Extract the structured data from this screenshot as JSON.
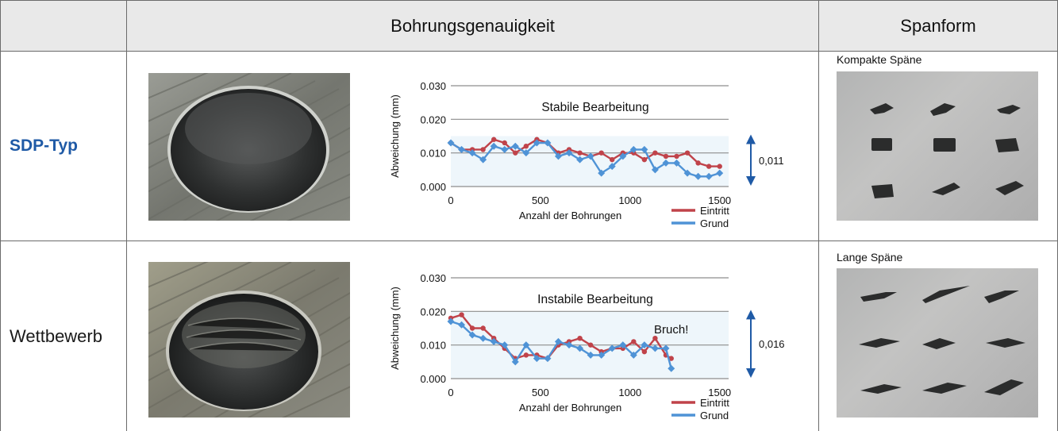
{
  "header": {
    "col_accuracy": "Bohrungsgenauigkeit",
    "col_chip": "Spanform"
  },
  "rows": [
    {
      "label": "SDP-Typ",
      "chip_label": "Kompakte Späne",
      "chart_note": "Stabile Bearbeitung",
      "range_value": "0,011"
    },
    {
      "label": "Wettbewerb",
      "chip_label": "Lange Späne",
      "chart_note": "Instabile Bearbeitung",
      "break_note": "Bruch!",
      "range_value": "0,016"
    }
  ],
  "colors": {
    "eintritt": "#c0434a",
    "grund": "#4f93d6",
    "brand": "#1f5aa6",
    "arrow": "#1f5aa6",
    "band": "#eef6fb"
  },
  "chart_data": [
    {
      "type": "line",
      "title": "",
      "xlabel": "Anzahl der Bohrungen",
      "ylabel": "Abweichung (mm)",
      "xlim": [
        0,
        1550
      ],
      "ylim": [
        0,
        0.03
      ],
      "xticks": [
        "0",
        "500",
        "1000",
        "1500"
      ],
      "yticks": [
        "0.000",
        "0.010",
        "0.020",
        "0.030"
      ],
      "grid": true,
      "legend_position": "bottom-right",
      "annotations": [
        "Stabile Bearbeitung",
        "0,011"
      ],
      "band": [
        0,
        0.015
      ],
      "series": [
        {
          "name": "Eintritt",
          "x": [
            0,
            60,
            120,
            180,
            240,
            300,
            360,
            420,
            480,
            540,
            600,
            660,
            720,
            780,
            840,
            900,
            960,
            1020,
            1080,
            1140,
            1200,
            1260,
            1320,
            1380,
            1440,
            1500
          ],
          "y": [
            0.013,
            0.011,
            0.011,
            0.011,
            0.014,
            0.013,
            0.01,
            0.012,
            0.014,
            0.013,
            0.01,
            0.011,
            0.01,
            0.009,
            0.01,
            0.008,
            0.01,
            0.01,
            0.008,
            0.01,
            0.009,
            0.009,
            0.01,
            0.007,
            0.006,
            0.006
          ]
        },
        {
          "name": "Grund",
          "x": [
            0,
            60,
            120,
            180,
            240,
            300,
            360,
            420,
            480,
            540,
            600,
            660,
            720,
            780,
            840,
            900,
            960,
            1020,
            1080,
            1140,
            1200,
            1260,
            1320,
            1380,
            1440,
            1500
          ],
          "y": [
            0.013,
            0.011,
            0.01,
            0.008,
            0.012,
            0.011,
            0.012,
            0.01,
            0.013,
            0.013,
            0.009,
            0.01,
            0.008,
            0.009,
            0.004,
            0.006,
            0.009,
            0.011,
            0.011,
            0.005,
            0.007,
            0.007,
            0.004,
            0.003,
            0.003,
            0.004
          ]
        }
      ]
    },
    {
      "type": "line",
      "title": "",
      "xlabel": "Anzahl der Bohrungen",
      "ylabel": "Abweichung (mm)",
      "xlim": [
        0,
        1550
      ],
      "ylim": [
        0,
        0.03
      ],
      "xticks": [
        "0",
        "500",
        "1000",
        "1500"
      ],
      "yticks": [
        "0.000",
        "0.010",
        "0.020",
        "0.030"
      ],
      "grid": true,
      "legend_position": "bottom-right",
      "annotations": [
        "Instabile Bearbeitung",
        "Bruch!",
        "0,016"
      ],
      "band": [
        0,
        0.02
      ],
      "series": [
        {
          "name": "Eintritt",
          "x": [
            0,
            60,
            120,
            180,
            240,
            300,
            360,
            420,
            480,
            540,
            600,
            660,
            720,
            780,
            840,
            900,
            960,
            1020,
            1080,
            1140,
            1200,
            1230
          ],
          "y": [
            0.018,
            0.019,
            0.015,
            0.015,
            0.012,
            0.009,
            0.006,
            0.007,
            0.007,
            0.006,
            0.01,
            0.011,
            0.012,
            0.01,
            0.008,
            0.009,
            0.009,
            0.011,
            0.008,
            0.012,
            0.007,
            0.006
          ]
        },
        {
          "name": "Grund",
          "x": [
            0,
            60,
            120,
            180,
            240,
            300,
            360,
            420,
            480,
            540,
            600,
            660,
            720,
            780,
            840,
            900,
            960,
            1020,
            1080,
            1140,
            1200,
            1230
          ],
          "y": [
            0.017,
            0.016,
            0.013,
            0.012,
            0.011,
            0.01,
            0.005,
            0.01,
            0.006,
            0.006,
            0.011,
            0.01,
            0.009,
            0.007,
            0.007,
            0.009,
            0.01,
            0.007,
            0.01,
            0.009,
            0.009,
            0.003
          ]
        }
      ]
    }
  ]
}
